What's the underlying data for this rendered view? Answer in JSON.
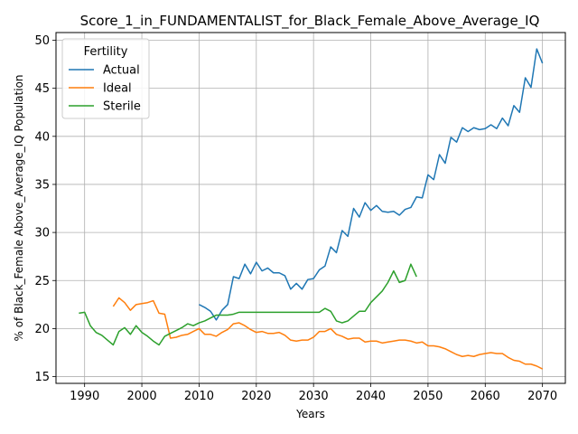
{
  "chart_data": {
    "type": "line",
    "title": "Score_1_in_FUNDAMENTALIST_for_Black_Female_Above_Average_IQ",
    "xlabel": "Years",
    "ylabel": "% of Black_Female Above_Average_IQ Population",
    "xlim": [
      1985,
      2074
    ],
    "ylim": [
      14.3,
      50.8
    ],
    "xticks": [
      1990,
      2000,
      2010,
      2020,
      2030,
      2040,
      2050,
      2060,
      2070
    ],
    "yticks": [
      15,
      20,
      25,
      30,
      35,
      40,
      45,
      50
    ],
    "grid": true,
    "legend": {
      "title": "Fertility",
      "placement": "upper-left"
    },
    "series": [
      {
        "name": "Actual",
        "color": "#1f77b4",
        "x": [
          2010,
          2011,
          2012,
          2013,
          2014,
          2015,
          2016,
          2017,
          2018,
          2019,
          2020,
          2021,
          2022,
          2023,
          2024,
          2025,
          2026,
          2027,
          2028,
          2029,
          2030,
          2031,
          2032,
          2033,
          2034,
          2035,
          2036,
          2037,
          2038,
          2039,
          2040,
          2041,
          2042,
          2043,
          2044,
          2045,
          2046,
          2047,
          2048,
          2049,
          2050,
          2051,
          2052,
          2053,
          2054,
          2055,
          2056,
          2057,
          2058,
          2059,
          2060,
          2061,
          2062,
          2063,
          2064,
          2065,
          2066,
          2067,
          2068,
          2069,
          2070
        ],
        "values": [
          22.5,
          22.2,
          21.8,
          20.9,
          21.9,
          22.5,
          25.4,
          25.2,
          26.7,
          25.7,
          26.9,
          26.0,
          26.3,
          25.8,
          25.8,
          25.5,
          24.1,
          24.7,
          24.1,
          25.1,
          25.2,
          26.1,
          26.5,
          28.5,
          27.9,
          30.2,
          29.6,
          32.5,
          31.6,
          33.1,
          32.3,
          32.8,
          32.2,
          32.1,
          32.2,
          31.8,
          32.4,
          32.6,
          33.7,
          33.6,
          36.0,
          35.5,
          38.1,
          37.2,
          39.9,
          39.4,
          40.9,
          40.5,
          40.9,
          40.7,
          40.8,
          41.2,
          40.8,
          41.9,
          41.1,
          43.2,
          42.5,
          46.1,
          45.1,
          49.1,
          47.6
        ]
      },
      {
        "name": "Ideal",
        "color": "#ff7f0e",
        "x": [
          1995,
          1996,
          1997,
          1998,
          1999,
          2000,
          2001,
          2002,
          2003,
          2004,
          2005,
          2006,
          2007,
          2008,
          2009,
          2010,
          2011,
          2012,
          2013,
          2014,
          2015,
          2016,
          2017,
          2018,
          2019,
          2020,
          2021,
          2022,
          2023,
          2024,
          2025,
          2026,
          2027,
          2028,
          2029,
          2030,
          2031,
          2032,
          2033,
          2034,
          2035,
          2036,
          2037,
          2038,
          2039,
          2040,
          2041,
          2042,
          2043,
          2044,
          2045,
          2046,
          2047,
          2048,
          2049,
          2050,
          2051,
          2052,
          2053,
          2054,
          2055,
          2056,
          2057,
          2058,
          2059,
          2060,
          2061,
          2062,
          2063,
          2064,
          2065,
          2066,
          2067,
          2068,
          2069,
          2070
        ],
        "values": [
          22.3,
          23.2,
          22.7,
          21.9,
          22.5,
          22.6,
          22.7,
          22.9,
          21.6,
          21.5,
          19.0,
          19.1,
          19.3,
          19.4,
          19.7,
          20.0,
          19.4,
          19.4,
          19.2,
          19.6,
          19.9,
          20.5,
          20.6,
          20.3,
          19.9,
          19.6,
          19.7,
          19.5,
          19.5,
          19.6,
          19.3,
          18.8,
          18.7,
          18.8,
          18.8,
          19.1,
          19.7,
          19.7,
          20.0,
          19.4,
          19.2,
          18.9,
          19.0,
          19.0,
          18.6,
          18.7,
          18.7,
          18.5,
          18.6,
          18.7,
          18.8,
          18.8,
          18.7,
          18.5,
          18.6,
          18.2,
          18.2,
          18.1,
          17.9,
          17.6,
          17.3,
          17.1,
          17.2,
          17.1,
          17.3,
          17.4,
          17.5,
          17.4,
          17.4,
          17.0,
          16.7,
          16.6,
          16.3,
          16.3,
          16.1,
          15.8
        ]
      },
      {
        "name": "Sterile",
        "color": "#2ca02c",
        "x": [
          1989,
          1990,
          1991,
          1992,
          1993,
          1994,
          1995,
          1996,
          1997,
          1998,
          1999,
          2000,
          2001,
          2002,
          2003,
          2004,
          2005,
          2006,
          2007,
          2008,
          2009,
          2010,
          2011,
          2012,
          2013,
          2014,
          2015,
          2016,
          2017,
          2018,
          2019,
          2020,
          2021,
          2022,
          2023,
          2024,
          2025,
          2026,
          2027,
          2028,
          2029,
          2030,
          2031,
          2032,
          2033,
          2034,
          2035,
          2036,
          2037,
          2038,
          2039,
          2040,
          2041,
          2042,
          2043,
          2044,
          2045,
          2046,
          2047,
          2048
        ],
        "values": [
          21.6,
          21.7,
          20.3,
          19.6,
          19.3,
          18.8,
          18.3,
          19.7,
          20.1,
          19.4,
          20.3,
          19.6,
          19.2,
          18.7,
          18.3,
          19.2,
          19.5,
          19.8,
          20.1,
          20.5,
          20.3,
          20.6,
          20.8,
          21.1,
          21.4,
          21.4,
          21.4,
          21.5,
          21.7,
          21.7,
          21.7,
          21.7,
          21.7,
          21.7,
          21.7,
          21.7,
          21.7,
          21.7,
          21.7,
          21.7,
          21.7,
          21.7,
          21.7,
          22.1,
          21.8,
          20.8,
          20.6,
          20.8,
          21.3,
          21.8,
          21.8,
          22.7,
          23.3,
          23.9,
          24.8,
          26.0,
          24.8,
          25.0,
          26.7,
          25.4
        ]
      }
    ]
  }
}
